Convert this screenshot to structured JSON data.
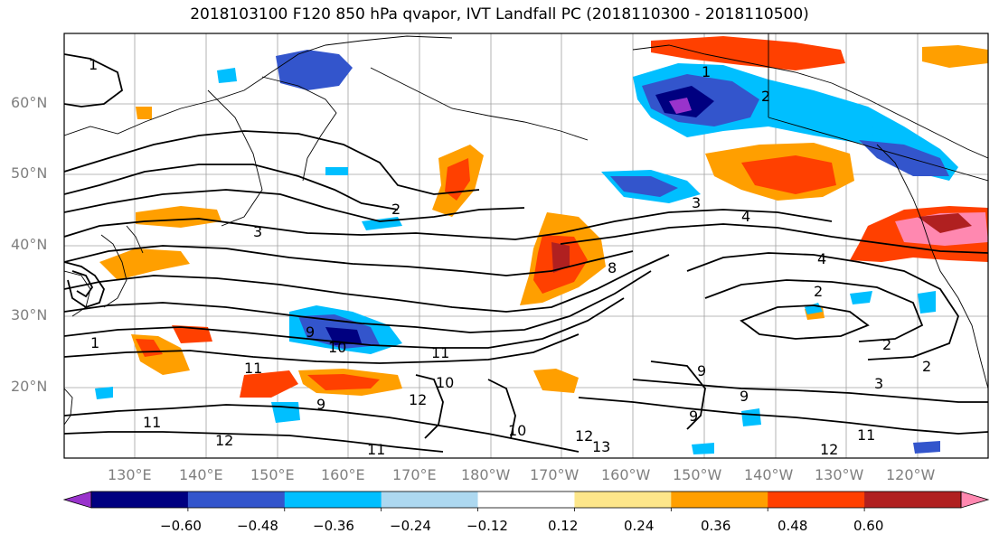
{
  "title": "2018103100 F120 850 hPa qvapor, IVT Landfall PC (2018110300 - 2018110500)",
  "latitude_labels": [
    "60°N",
    "50°N",
    "40°N",
    "30°N",
    "20°N"
  ],
  "longitude_labels": [
    "130°E",
    "140°E",
    "150°E",
    "160°E",
    "170°E",
    "180°W",
    "170°W",
    "160°W",
    "150°W",
    "140°W",
    "130°W",
    "120°W"
  ],
  "colorbar": {
    "tick_labels": [
      "−0.60",
      "−0.48",
      "−0.36",
      "−0.24",
      "−0.12",
      "0.12",
      "0.24",
      "0.36",
      "0.48",
      "0.60"
    ],
    "colors": [
      "#9933cc",
      "#000080",
      "#3355cc",
      "#00bfff",
      "#add8f0",
      "#ffffff",
      "#fde68a",
      "#ff9f00",
      "#ff4000",
      "#b02020",
      "#ff88b0"
    ]
  },
  "contour_labels": [
    "1",
    "1",
    "1",
    "2",
    "2",
    "2",
    "2",
    "2",
    "3",
    "3",
    "3",
    "4",
    "4",
    "8",
    "9",
    "9",
    "9",
    "9",
    "9",
    "10",
    "10",
    "10",
    "11",
    "11",
    "11",
    "11",
    "11",
    "12",
    "12",
    "12",
    "12",
    "13"
  ]
}
